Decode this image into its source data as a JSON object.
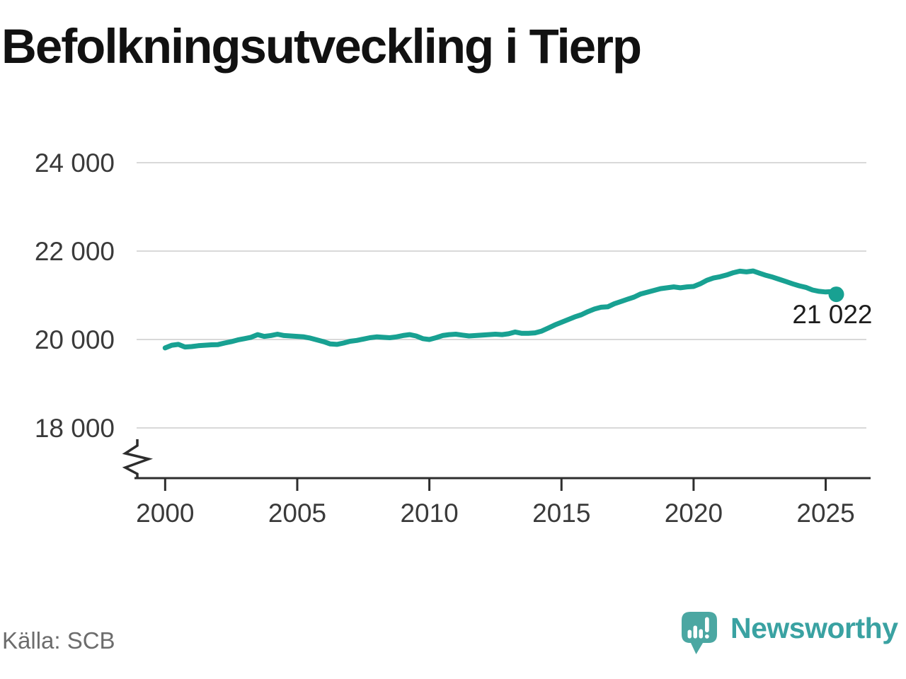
{
  "page": {
    "title": "Befolkningsutveckling i Tierp",
    "source": "Källa: SCB",
    "brand": {
      "name": "Newsworthy",
      "badge_color": "#4ba7a2",
      "badge_glyph_color": "#ffffff",
      "text_color": "#3aa2a2"
    }
  },
  "chart_data": {
    "type": "line",
    "title": "Befolkningsutveckling i Tierp",
    "xlabel": "",
    "ylabel": "",
    "grid": "horizontal",
    "legend": "none",
    "y_axis_break": true,
    "xlim": [
      1999.0,
      2026.7
    ],
    "ylim": [
      18000,
      24000
    ],
    "xticks": {
      "values": [
        2000,
        2005,
        2010,
        2015,
        2020,
        2025
      ],
      "labels": [
        "2000",
        "2005",
        "2010",
        "2015",
        "2020",
        "2025"
      ]
    },
    "yticks": {
      "values": [
        24000,
        22000,
        20000,
        18000
      ],
      "labels": [
        "24 000",
        "22 000",
        "20 000",
        "18 000"
      ]
    },
    "colors": {
      "line": "#18a192",
      "grid": "#d9d9d9",
      "axis": "#2d2d2d",
      "tick_label": "#3a3a3a",
      "annotation": "#1d1d1d",
      "background": "#ffffff"
    },
    "end_label": "21 022",
    "end_value": 21022,
    "series": [
      {
        "name": "Befolkning i Tierp",
        "color": "#18a192",
        "x": [
          2000,
          2000.25,
          2000.5,
          2000.75,
          2001,
          2001.25,
          2001.5,
          2001.75,
          2002,
          2002.25,
          2002.5,
          2002.75,
          2003,
          2003.25,
          2003.5,
          2003.75,
          2004,
          2004.25,
          2004.5,
          2004.75,
          2005,
          2005.25,
          2005.5,
          2005.75,
          2006,
          2006.25,
          2006.5,
          2006.75,
          2007,
          2007.25,
          2007.5,
          2007.75,
          2008,
          2008.25,
          2008.5,
          2008.75,
          2009,
          2009.25,
          2009.5,
          2009.75,
          2010,
          2010.25,
          2010.5,
          2010.75,
          2011,
          2011.25,
          2011.5,
          2011.75,
          2012,
          2012.25,
          2012.5,
          2012.75,
          2013,
          2013.25,
          2013.5,
          2013.75,
          2014,
          2014.25,
          2014.5,
          2014.75,
          2015,
          2015.25,
          2015.5,
          2015.75,
          2016,
          2016.25,
          2016.5,
          2016.75,
          2017,
          2017.25,
          2017.5,
          2017.75,
          2018,
          2018.25,
          2018.5,
          2018.75,
          2019,
          2019.25,
          2019.5,
          2019.75,
          2020,
          2020.25,
          2020.5,
          2020.75,
          2021,
          2021.25,
          2021.5,
          2021.75,
          2022,
          2022.25,
          2022.5,
          2022.75,
          2023,
          2023.25,
          2023.5,
          2023.75,
          2024,
          2024.25,
          2024.5,
          2024.75,
          2025,
          2025.25,
          2025.4
        ],
        "values": [
          19810,
          19870,
          19890,
          19830,
          19840,
          19860,
          19870,
          19880,
          19885,
          19920,
          19950,
          19990,
          20020,
          20050,
          20110,
          20070,
          20090,
          20120,
          20090,
          20080,
          20070,
          20060,
          20030,
          19990,
          19950,
          19900,
          19890,
          19920,
          19960,
          19980,
          20010,
          20040,
          20060,
          20050,
          20040,
          20060,
          20090,
          20110,
          20080,
          20020,
          20000,
          20040,
          20090,
          20110,
          20120,
          20100,
          20080,
          20090,
          20100,
          20110,
          20120,
          20110,
          20130,
          20170,
          20140,
          20140,
          20150,
          20190,
          20260,
          20330,
          20390,
          20450,
          20510,
          20560,
          20630,
          20690,
          20730,
          20740,
          20810,
          20860,
          20910,
          20960,
          21030,
          21070,
          21110,
          21150,
          21170,
          21190,
          21170,
          21190,
          21200,
          21260,
          21340,
          21390,
          21420,
          21460,
          21510,
          21545,
          21530,
          21550,
          21500,
          21450,
          21410,
          21360,
          21310,
          21260,
          21215,
          21180,
          21120,
          21090,
          21075,
          21085,
          21022
        ]
      }
    ]
  }
}
